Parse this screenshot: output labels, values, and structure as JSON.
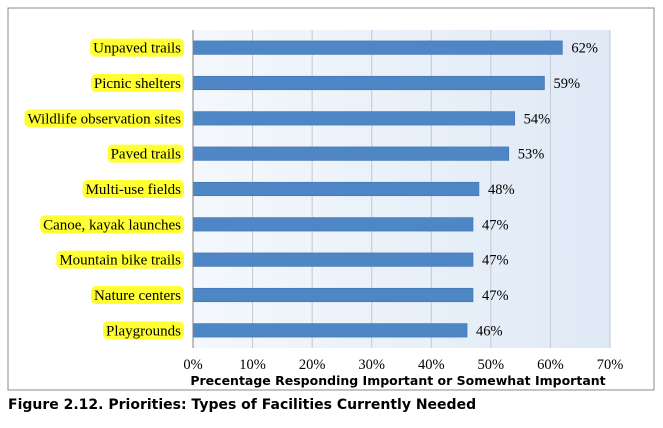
{
  "caption": "Figure 2.12.  Priorities: Types of Facilities Currently Needed",
  "chart_data": {
    "type": "bar",
    "orientation": "horizontal",
    "categories": [
      "Unpaved trails",
      "Picnic shelters",
      "Wildlife observation sites",
      "Paved trails",
      "Multi-use fields",
      "Canoe, kayak launches",
      "Mountain bike trails",
      "Nature centers",
      "Playgrounds"
    ],
    "values": [
      62,
      59,
      54,
      53,
      48,
      47,
      47,
      47,
      46
    ],
    "value_labels": [
      "62%",
      "59%",
      "54%",
      "53%",
      "48%",
      "47%",
      "47%",
      "47%",
      "46%"
    ],
    "xlabel": "Precentage Responding Important or Somewhat Important",
    "xlim": [
      0,
      70
    ],
    "x_ticks": [
      0,
      10,
      20,
      30,
      40,
      50,
      60,
      70
    ],
    "x_tick_labels": [
      "0%",
      "10%",
      "20%",
      "30%",
      "40%",
      "50%",
      "60%",
      "70%"
    ],
    "grid": "vertical",
    "colors": {
      "bar": "#4f86c6",
      "bar_edge": "#3f72b0",
      "label_highlight": "#ffff33",
      "plot_bg": "#dfe9f6",
      "plot_bg_light": "#f4f8fc",
      "frame": "#8a8a8a"
    }
  }
}
